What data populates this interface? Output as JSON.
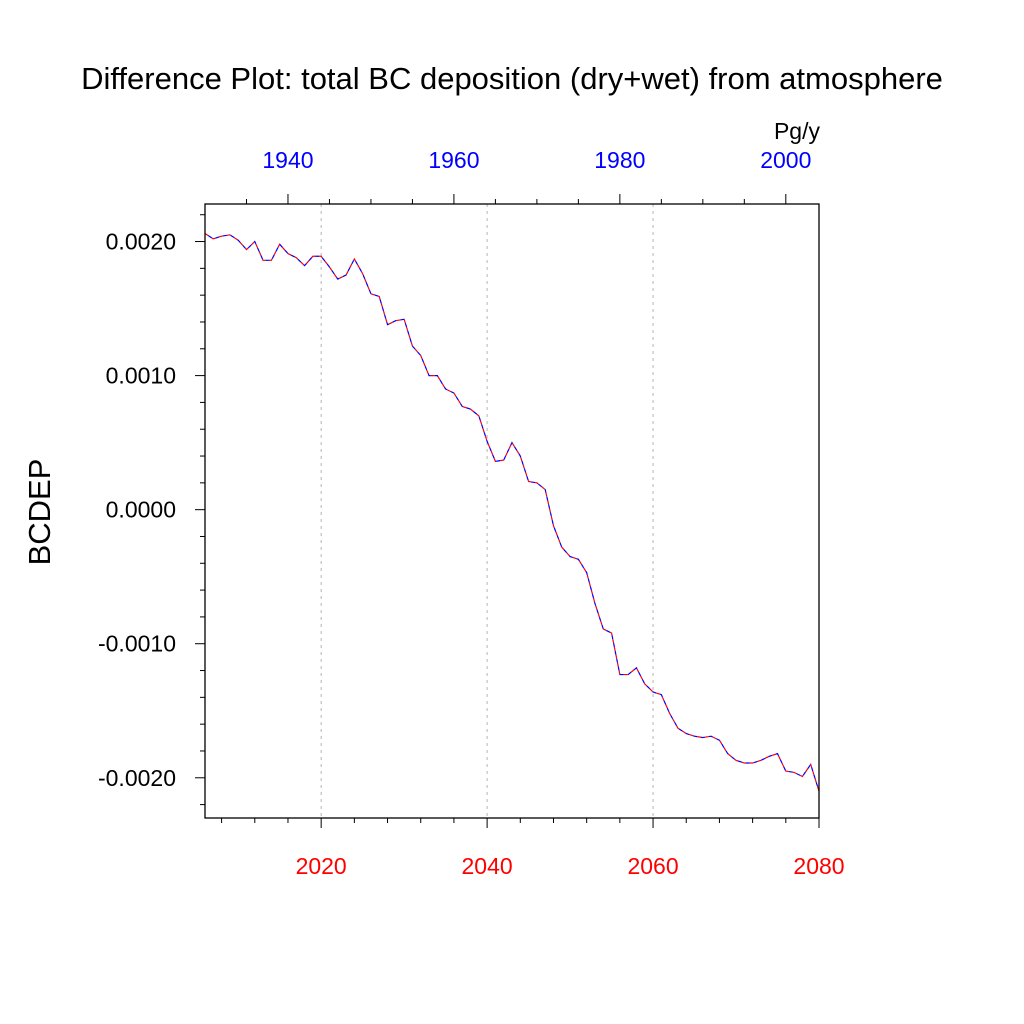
{
  "chart_data": {
    "type": "line",
    "title": "Difference Plot: total BC deposition (dry+wet) from atmosphere",
    "ylabel": "BCDEP",
    "units": "Pg/y",
    "bottom_axis": {
      "range": [
        2006,
        2080
      ],
      "tick_labels": [
        "2020",
        "2040",
        "2060",
        "2080"
      ],
      "tick_values": [
        2020,
        2040,
        2060,
        2080
      ],
      "label_color": "#ff0000",
      "gridlines": true
    },
    "top_axis": {
      "range": [
        1930,
        2004
      ],
      "tick_labels": [
        "1940",
        "1960",
        "1980",
        "2000"
      ],
      "tick_values": [
        1940,
        1960,
        1980,
        2000
      ],
      "label_color": "#0000ff"
    },
    "left_axis": {
      "range": [
        -0.0023,
        0.00228
      ],
      "tick_labels": [
        "0.0020",
        "0.0010",
        "0.0000",
        "-0.0010",
        "-0.0020"
      ],
      "tick_values": [
        0.002,
        0.001,
        0.0,
        -0.001,
        -0.002
      ]
    },
    "series": [
      {
        "line_colors": [
          "#ff0000",
          "#0000ff"
        ],
        "line_style": "dashed",
        "x": [
          2006,
          2007,
          2008,
          2009,
          2010,
          2011,
          2012,
          2013,
          2014,
          2015,
          2016,
          2017,
          2018,
          2019,
          2020,
          2021,
          2022,
          2023,
          2024,
          2025,
          2026,
          2027,
          2028,
          2029,
          2030,
          2031,
          2032,
          2033,
          2034,
          2035,
          2036,
          2037,
          2038,
          2039,
          2040,
          2041,
          2042,
          2043,
          2044,
          2045,
          2046,
          2047,
          2048,
          2049,
          2050,
          2051,
          2052,
          2053,
          2054,
          2055,
          2056,
          2057,
          2058,
          2059,
          2060,
          2061,
          2062,
          2063,
          2064,
          2065,
          2066,
          2067,
          2068,
          2069,
          2070,
          2071,
          2072,
          2073,
          2074,
          2075,
          2076,
          2077,
          2078,
          2079,
          2080
        ],
        "values": [
          0.00206,
          0.00202,
          0.00204,
          0.00205,
          0.00201,
          0.00194,
          0.002,
          0.00186,
          0.00186,
          0.00198,
          0.00191,
          0.00188,
          0.00182,
          0.00189,
          0.00189,
          0.00181,
          0.00172,
          0.00175,
          0.00187,
          0.00176,
          0.00161,
          0.00159,
          0.00138,
          0.00141,
          0.00142,
          0.00122,
          0.00115,
          0.001,
          0.001,
          0.0009,
          0.00087,
          0.00077,
          0.00075,
          0.0007,
          0.00051,
          0.00036,
          0.00037,
          0.0005,
          0.0004,
          0.00021,
          0.0002,
          0.00015,
          -0.00012,
          -0.00028,
          -0.00035,
          -0.00037,
          -0.00047,
          -0.0007,
          -0.00089,
          -0.00092,
          -0.00123,
          -0.00123,
          -0.00118,
          -0.0013,
          -0.00136,
          -0.00138,
          -0.00152,
          -0.00163,
          -0.00167,
          -0.00169,
          -0.0017,
          -0.00169,
          -0.00172,
          -0.00182,
          -0.00187,
          -0.00189,
          -0.00189,
          -0.00187,
          -0.00184,
          -0.00182,
          -0.00195,
          -0.00196,
          -0.00199,
          -0.0019,
          -0.0021
        ]
      }
    ]
  }
}
